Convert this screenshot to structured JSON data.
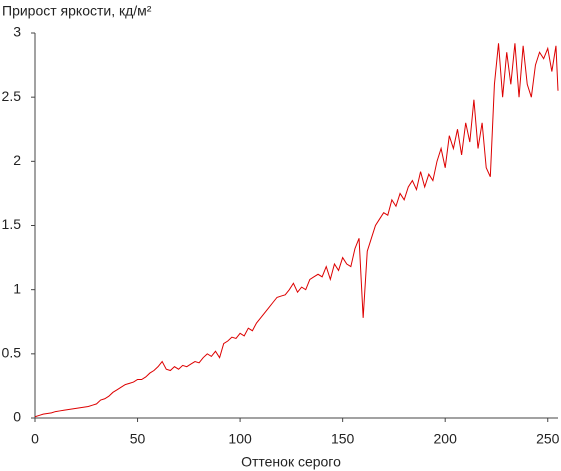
{
  "chart_data": {
    "type": "line",
    "title": "Прирост яркости, кд/м²",
    "x_label": "Оттенок серого",
    "x": [
      0,
      2,
      4,
      6,
      8,
      10,
      12,
      14,
      16,
      18,
      20,
      22,
      24,
      26,
      28,
      30,
      32,
      34,
      36,
      38,
      40,
      42,
      44,
      46,
      48,
      50,
      52,
      54,
      56,
      58,
      60,
      62,
      64,
      66,
      68,
      70,
      72,
      74,
      76,
      78,
      80,
      82,
      84,
      86,
      88,
      90,
      92,
      94,
      96,
      98,
      100,
      102,
      104,
      106,
      108,
      110,
      112,
      114,
      116,
      118,
      120,
      122,
      124,
      126,
      128,
      130,
      132,
      134,
      136,
      138,
      140,
      142,
      144,
      146,
      148,
      150,
      152,
      154,
      156,
      158,
      160,
      162,
      164,
      166,
      168,
      170,
      172,
      174,
      176,
      178,
      180,
      182,
      184,
      186,
      188,
      190,
      192,
      194,
      196,
      198,
      200,
      202,
      204,
      206,
      208,
      210,
      212,
      214,
      216,
      218,
      220,
      222,
      224,
      226,
      228,
      230,
      232,
      234,
      236,
      238,
      240,
      242,
      244,
      246,
      248,
      250,
      252,
      254,
      255
    ],
    "series": [
      {
        "color": "#dd0000",
        "values": [
          0.01,
          0.02,
          0.03,
          0.035,
          0.04,
          0.05,
          0.055,
          0.06,
          0.065,
          0.07,
          0.075,
          0.08,
          0.085,
          0.09,
          0.1,
          0.11,
          0.14,
          0.15,
          0.17,
          0.2,
          0.22,
          0.24,
          0.26,
          0.27,
          0.28,
          0.3,
          0.3,
          0.32,
          0.35,
          0.37,
          0.4,
          0.44,
          0.38,
          0.37,
          0.4,
          0.38,
          0.41,
          0.4,
          0.42,
          0.44,
          0.43,
          0.47,
          0.5,
          0.48,
          0.52,
          0.47,
          0.58,
          0.6,
          0.63,
          0.62,
          0.66,
          0.64,
          0.7,
          0.68,
          0.74,
          0.78,
          0.82,
          0.86,
          0.9,
          0.94,
          0.95,
          0.96,
          1.0,
          1.05,
          0.98,
          1.02,
          1.0,
          1.08,
          1.1,
          1.12,
          1.1,
          1.18,
          1.08,
          1.2,
          1.15,
          1.25,
          1.2,
          1.18,
          1.32,
          1.4,
          0.78,
          1.3,
          1.4,
          1.5,
          1.55,
          1.6,
          1.58,
          1.7,
          1.65,
          1.75,
          1.7,
          1.8,
          1.85,
          1.78,
          1.92,
          1.8,
          1.9,
          1.85,
          2.0,
          2.1,
          1.95,
          2.2,
          2.1,
          2.25,
          2.05,
          2.3,
          2.15,
          2.48,
          2.1,
          2.3,
          1.95,
          1.88,
          2.6,
          2.92,
          2.5,
          2.85,
          2.6,
          2.92,
          2.5,
          2.9,
          2.6,
          2.5,
          2.75,
          2.85,
          2.8,
          2.88,
          2.7,
          2.9,
          2.55
        ]
      }
    ],
    "xlim": [
      0,
      255
    ],
    "xticks": [
      0,
      50,
      100,
      150,
      200,
      250
    ],
    "ylim": [
      0,
      3
    ],
    "yticks": [
      0,
      0.5,
      1,
      1.5,
      2,
      2.5,
      3
    ],
    "grid": false
  }
}
